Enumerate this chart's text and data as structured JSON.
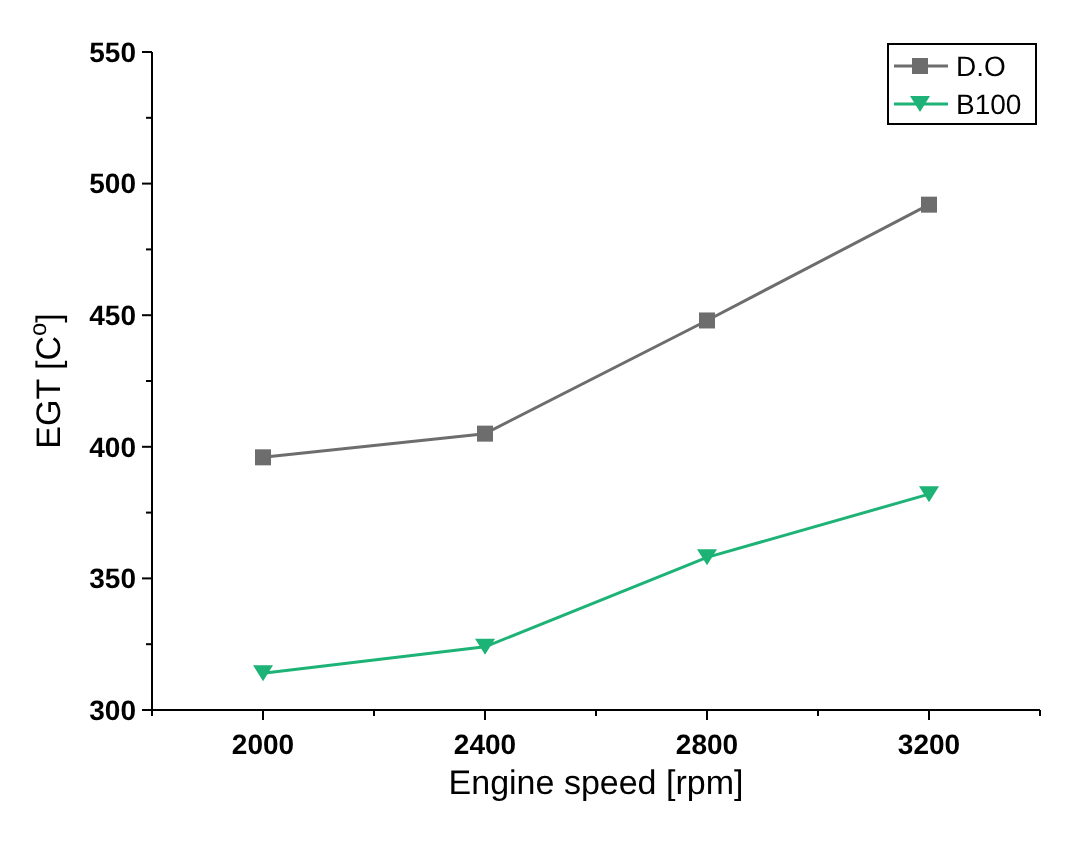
{
  "chart_data": {
    "type": "line",
    "xlabel": "Engine speed [rpm]",
    "ylabel": "EGT [C$^{o}$]",
    "x": [
      2000,
      2400,
      2800,
      3200
    ],
    "xlim": [
      1800,
      3400
    ],
    "xticks": [
      {
        "value": 1800,
        "label": null
      },
      2000,
      {
        "value": 2200,
        "label": null
      },
      2400,
      {
        "value": 2600,
        "label": null
      },
      2800,
      {
        "value": 3000,
        "label": null
      },
      3200,
      {
        "value": 3400,
        "label": null
      }
    ],
    "ylim": [
      300,
      550
    ],
    "yticks": [
      300,
      {
        "value": 325,
        "label": null
      },
      350,
      {
        "value": 375,
        "label": null
      },
      400,
      {
        "value": 425,
        "label": null
      },
      450,
      {
        "value": 475,
        "label": null
      },
      500,
      {
        "value": 525,
        "label": null
      },
      550
    ],
    "series": [
      {
        "name": "D.O",
        "color": "#6d6d6d",
        "marker": "square",
        "values": [
          396,
          405,
          448,
          492
        ]
      },
      {
        "name": "B100",
        "color": "#1db376",
        "marker": "triangle",
        "values": [
          314,
          324,
          358,
          382
        ]
      }
    ],
    "legend": "top right",
    "grid": false
  }
}
